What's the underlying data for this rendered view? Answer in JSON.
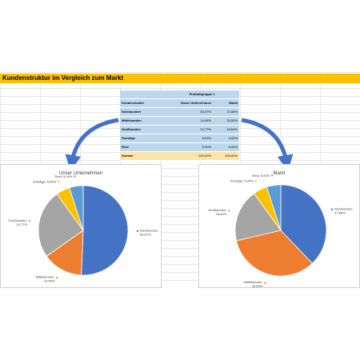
{
  "sheet_title": "Kundenstruktur im Vergleich zum Markt",
  "table": {
    "group_header": "Produktgruppe 1",
    "col_label": "Kundencluster",
    "col_a": "Unser Unternehmen",
    "col_b": "Markt",
    "rows": [
      {
        "label": "Kleinkunden",
        "a": "50,67%",
        "b": "37,86%"
      },
      {
        "label": "Mittelkunden",
        "a": "14,56%",
        "b": "33,50%"
      },
      {
        "label": "Großkunden",
        "a": "24,77%",
        "b": "18,64%"
      },
      {
        "label": "Sonstige",
        "a": "5,00%",
        "b": "5,00%"
      },
      {
        "label": "Rest",
        "a": "5,00%",
        "b": "5,00%"
      }
    ],
    "sum": {
      "label": "Summe",
      "a": "100,00%",
      "b": "100,00%"
    }
  },
  "colors": {
    "Kleinkunden": "#4472c4",
    "Mittelkunden": "#ed7d31",
    "Großkunden": "#a5a5a5",
    "Sonstige": "#ffc000",
    "Rest": "#5b9bd5",
    "title_bar": "#ffc000",
    "arrow": "#4472c4"
  },
  "chart_data": [
    {
      "type": "pie",
      "title": "Unser Unternehmen",
      "categories": [
        "Kleinkunden",
        "Mittelkunden",
        "Großkunden",
        "Sonstige",
        "Rest"
      ],
      "values": [
        50.67,
        14.56,
        24.77,
        5.0,
        5.0
      ],
      "labels": [
        "Kleinkunden; 50,67%",
        "Mittelkunden; 14,56%",
        "Großkunden; 24,77%",
        "Sonstige; 5,00%",
        "Rest; 5,00%"
      ]
    },
    {
      "type": "pie",
      "title": "Markt",
      "categories": [
        "Kleinkunden",
        "Mittelkunden",
        "Großkunden",
        "Sonstige",
        "Rest"
      ],
      "values": [
        37.86,
        33.5,
        18.64,
        5.0,
        5.0
      ],
      "labels": [
        "Kleinkunden; 37,86%",
        "Mittelkunden; 33,50%",
        "Großkunden; 18,64%",
        "Sonstige; 5,00%",
        "Rest; 5,00%"
      ]
    }
  ]
}
